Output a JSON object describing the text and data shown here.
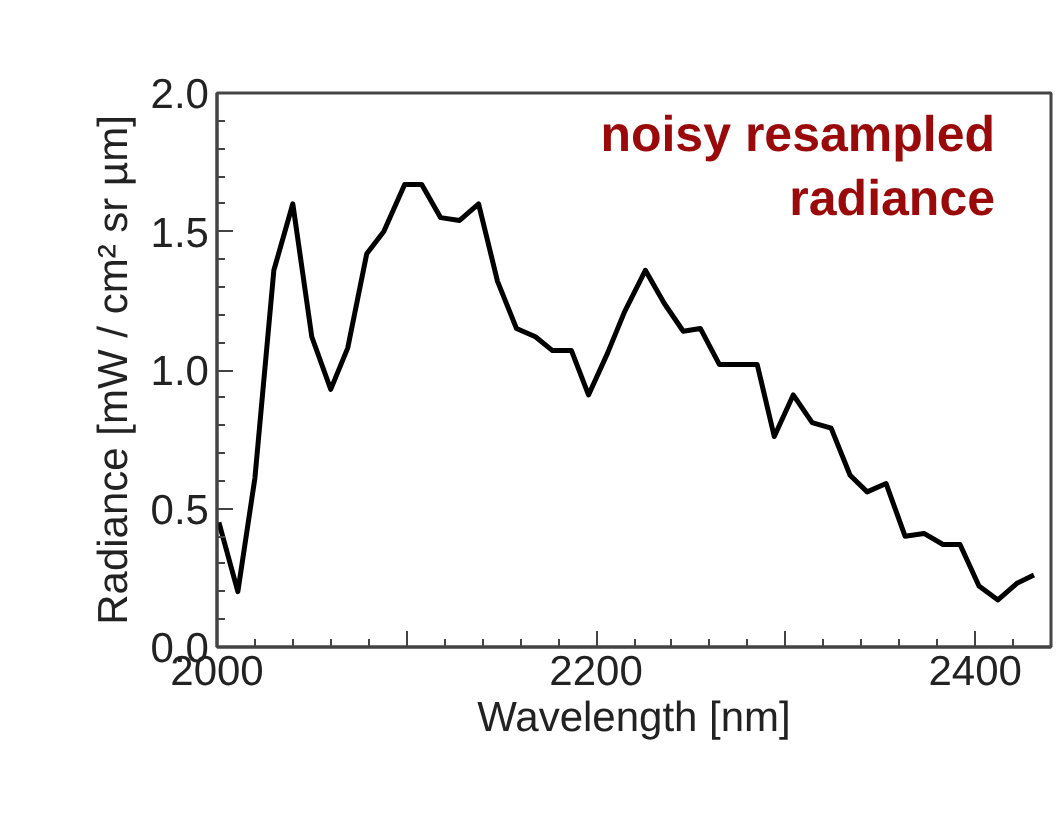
{
  "chart_data": {
    "type": "line",
    "xlabel": "Wavelength [nm]",
    "ylabel": "Radiance [mW / cm² sr µm]",
    "annotations": [
      "noisy resampled radiance"
    ],
    "x": [
      2001,
      2011,
      2020,
      2030,
      2040,
      2050,
      2060,
      2069,
      2079,
      2088,
      2099,
      2108,
      2118,
      2128,
      2138,
      2148,
      2158,
      2168,
      2177,
      2187,
      2196,
      2206,
      2215,
      2226,
      2236,
      2246,
      2255,
      2265,
      2275,
      2285,
      2294,
      2304,
      2314,
      2324,
      2334,
      2343,
      2353,
      2363,
      2373,
      2383,
      2392,
      2402,
      2412,
      2422,
      2431
    ],
    "series": [
      {
        "color": "#000000",
        "values": [
          0.45,
          0.2,
          0.61,
          1.36,
          1.6,
          1.12,
          0.93,
          1.08,
          1.42,
          1.5,
          1.67,
          1.67,
          1.55,
          1.54,
          1.6,
          1.32,
          1.15,
          1.12,
          1.07,
          1.07,
          0.91,
          1.06,
          1.21,
          1.36,
          1.24,
          1.14,
          1.15,
          1.02,
          1.02,
          1.02,
          0.76,
          0.91,
          0.81,
          0.79,
          0.62,
          0.56,
          0.59,
          0.4,
          0.41,
          0.37,
          0.37,
          0.22,
          0.17,
          0.23,
          0.26
        ]
      }
    ],
    "xlim": [
      2000,
      2440
    ],
    "xticks": [
      2000,
      2200,
      2400
    ],
    "ylim": [
      0,
      2.0
    ],
    "yticks": [
      {
        "value": 0,
        "label": "0.0"
      },
      0.5,
      {
        "value": 1,
        "label": "1.0"
      },
      1.5,
      {
        "value": 2,
        "label": "2.0"
      }
    ],
    "grid": false,
    "marker": "none",
    "line_style": "solid"
  }
}
